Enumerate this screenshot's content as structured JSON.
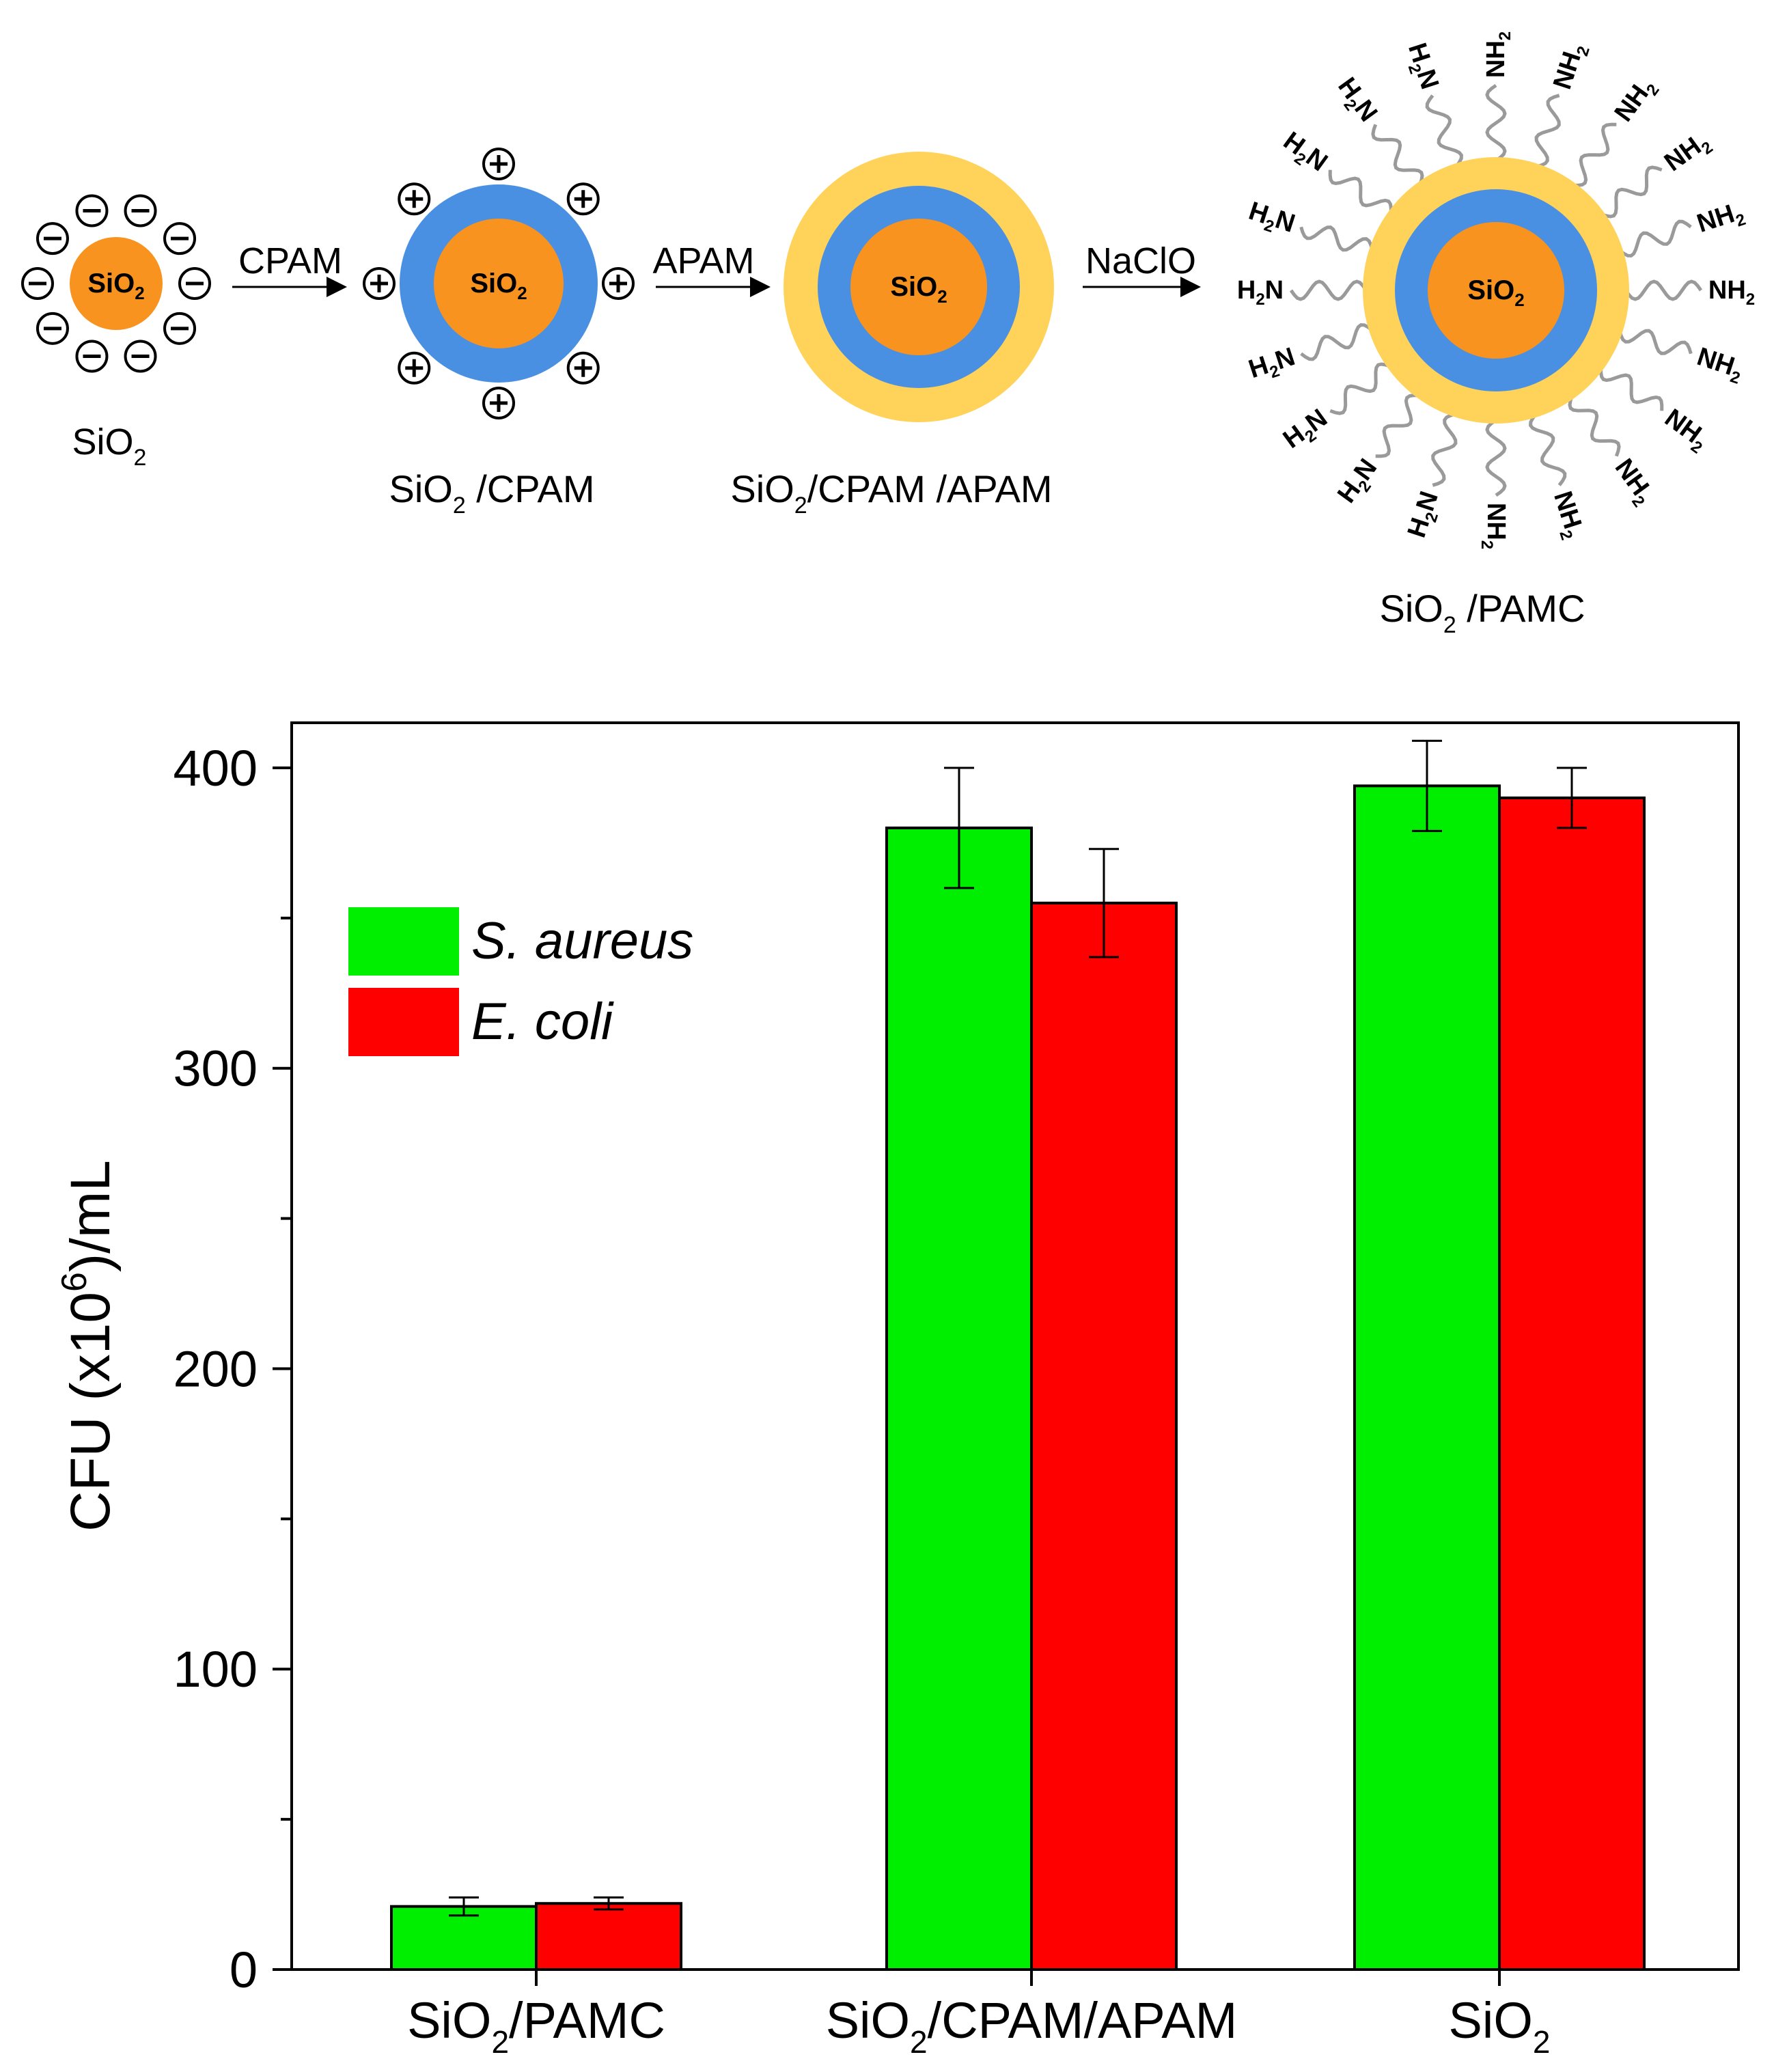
{
  "scheme": {
    "stages": [
      {
        "core": "SiO2",
        "label": "SiO2",
        "shells": [],
        "charge": "negative"
      },
      {
        "core": "SiO2",
        "label": "SiO2 /CPAM",
        "shells": [
          "CPAM"
        ],
        "charge": "positive"
      },
      {
        "core": "SiO2",
        "label": "SiO2/CPAM /APAM",
        "shells": [
          "CPAM",
          "APAM"
        ],
        "charge": "none"
      },
      {
        "core": "SiO2",
        "label": "SiO2 /PAMC",
        "shells": [
          "CPAM",
          "APAM"
        ],
        "charge": "amine"
      }
    ],
    "arrows": [
      "CPAM",
      "APAM",
      "NaClO"
    ],
    "amine_left": "H2N",
    "amine_right": "NH2",
    "colors": {
      "core": "#F7931E",
      "cpam": "#4A90E2",
      "apam": "#FFD25A",
      "chain": "#9a9a9a"
    }
  },
  "chart_data": {
    "type": "bar",
    "categories": [
      "SiO2/PAMC",
      "SiO2/CPAM/APAM",
      "SiO2"
    ],
    "series": [
      {
        "name": "S. aureus",
        "color": "#00EE00",
        "values": [
          21,
          380,
          394
        ],
        "errors": [
          3,
          20,
          15
        ]
      },
      {
        "name": "E. coli",
        "color": "#FF0000",
        "values": [
          22,
          355,
          390
        ],
        "errors": [
          2,
          18,
          10
        ]
      }
    ],
    "ylabel": "CFU (x10^6)/mL",
    "ylim": [
      0,
      415
    ],
    "yticks": [
      0,
      100,
      200,
      300,
      400
    ],
    "legend": "top-left",
    "grid": false
  }
}
